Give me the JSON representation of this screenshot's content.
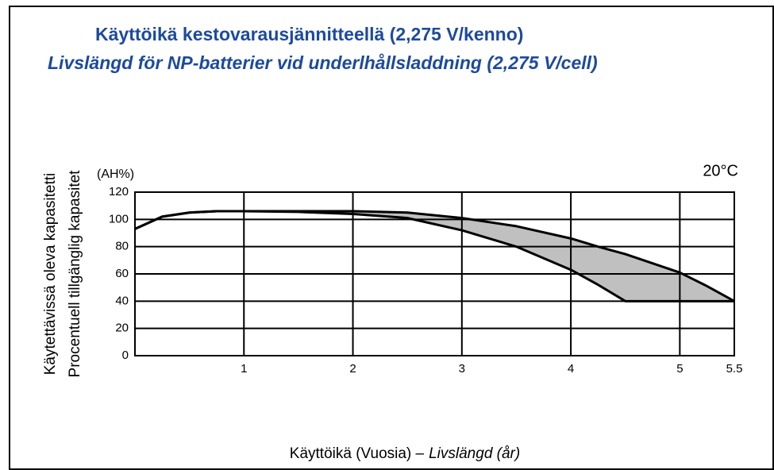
{
  "chart_data": {
    "type": "band",
    "title": "Käyttöikä kestovarausjännitteellä (2,275 V/kenno)",
    "subtitle": "Livslängd för NP-batterier vid underlhållsladdning (2,275 V/cell)",
    "y_label": [
      "Käytettävissä oleva kapasitetti",
      "Procentuell tillgänglig kapasitet"
    ],
    "y_unit": "(AH%)",
    "annotation": "20°C",
    "x_label": [
      "Käyttöikä (Vuosia) –",
      "Livslängd (år)"
    ],
    "x": [
      0,
      0.25,
      0.5,
      0.75,
      1,
      1.5,
      2,
      2.5,
      3,
      3.5,
      4,
      4.25,
      4.5,
      5,
      5.25,
      5.5
    ],
    "series": [
      {
        "color": "#000000",
        "values": [
          93,
          102,
          105,
          106,
          106,
          106,
          106,
          105,
          101,
          95,
          86,
          80,
          74.5,
          61,
          51,
          40
        ]
      },
      {
        "color": "#000000",
        "values": [
          93,
          102,
          105,
          106,
          106,
          105.5,
          104,
          101,
          92,
          80,
          63,
          52,
          40,
          40,
          40,
          40
        ]
      }
    ],
    "fill": "#c0c0c0",
    "xlim": [
      0,
      5.5
    ],
    "xticks": [
      1,
      2,
      3,
      4,
      5,
      5.5
    ],
    "ylim": [
      0,
      120
    ],
    "yticks": [
      0,
      20,
      40,
      60,
      80,
      100,
      120
    ],
    "grid": true
  }
}
